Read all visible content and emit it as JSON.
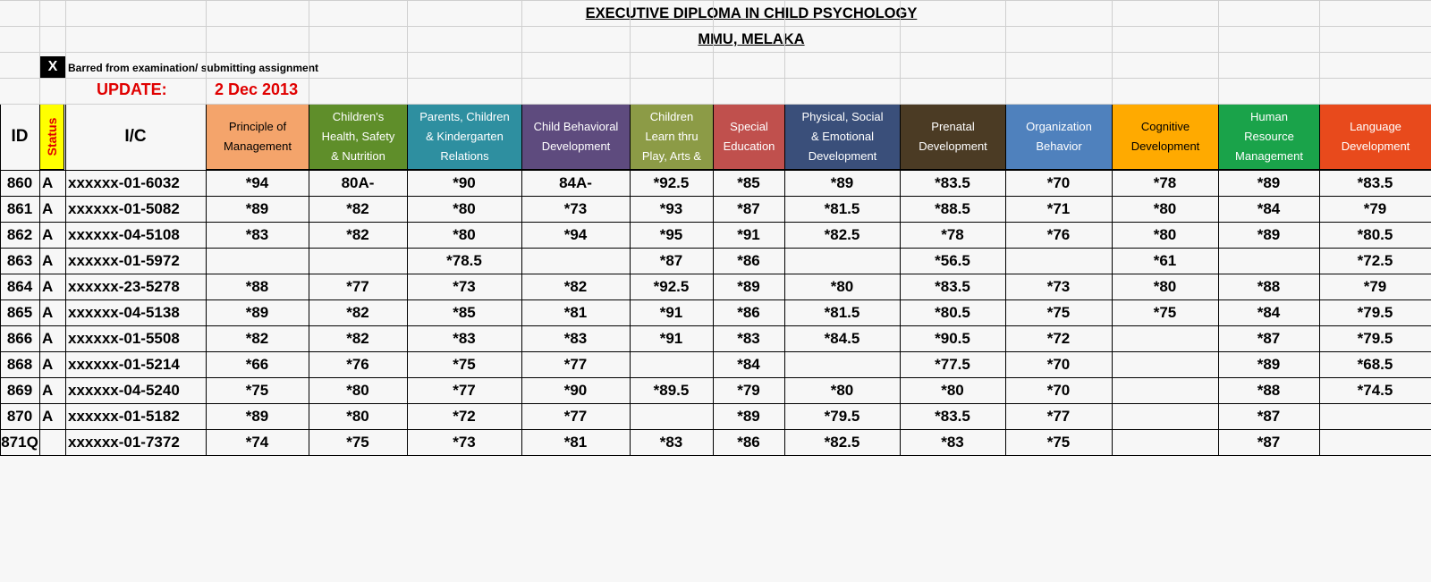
{
  "title": "EXECUTIVE DIPLOMA IN CHILD PSYCHOLOGY",
  "subtitle": "MMU, MELAKA",
  "legend": {
    "mark": "X",
    "text": "Barred from examination/ submitting assignment"
  },
  "update": {
    "label": "UPDATE:",
    "date": "2 Dec 2013"
  },
  "headers": {
    "id": "ID",
    "status": "Status",
    "ic": "I/C",
    "subjects": [
      {
        "lines": [
          "Principle of",
          "Management"
        ],
        "color": "#f4a46b"
      },
      {
        "lines": [
          "Children's",
          "Health, Safety",
          "& Nutrition"
        ],
        "color": "#5f8e2a"
      },
      {
        "lines": [
          "Parents, Children",
          "& Kindergarten",
          "Relations"
        ],
        "color": "#2e8fa0"
      },
      {
        "lines": [
          "Child Behavioral",
          "Development"
        ],
        "color": "#5e4b7e"
      },
      {
        "lines": [
          "Children",
          "Learn thru",
          "Play, Arts &"
        ],
        "color": "#8c9b46"
      },
      {
        "lines": [
          "Special",
          "Education"
        ],
        "color": "#c0504d"
      },
      {
        "lines": [
          "Physical, Social",
          "& Emotional",
          "Development"
        ],
        "color": "#3a4f7a"
      },
      {
        "lines": [
          "Prenatal",
          "Development"
        ],
        "color": "#4b3b24"
      },
      {
        "lines": [
          "Organization",
          "Behavior"
        ],
        "color": "#4f81bd"
      },
      {
        "lines": [
          "Cognitive",
          "Development"
        ],
        "color": "#ffaa00"
      },
      {
        "lines": [
          "Human",
          "Resource",
          "Management"
        ],
        "color": "#1aa34a"
      },
      {
        "lines": [
          "Language",
          "Development"
        ],
        "color": "#e84a1c"
      }
    ]
  },
  "rows": [
    {
      "id": "860",
      "status": "A",
      "ic": "xxxxxx-01-6032",
      "marks": [
        "*94",
        "80A-",
        "*90",
        "84A-",
        "*92.5",
        "*85",
        "*89",
        "*83.5",
        "*70",
        "*78",
        "*89",
        "*83.5"
      ]
    },
    {
      "id": "861",
      "status": "A",
      "ic": "xxxxxx-01-5082",
      "marks": [
        "*89",
        "*82",
        "*80",
        "*73",
        "*93",
        "*87",
        "*81.5",
        "*88.5",
        "*71",
        "*80",
        "*84",
        "*79"
      ]
    },
    {
      "id": "862",
      "status": "A",
      "ic": "xxxxxx-04-5108",
      "marks": [
        "*83",
        "*82",
        "*80",
        "*94",
        "*95",
        "*91",
        "*82.5",
        "*78",
        "*76",
        "*80",
        "*89",
        "*80.5"
      ]
    },
    {
      "id": "863",
      "status": "A",
      "ic": "xxxxxx-01-5972",
      "marks": [
        "",
        "",
        "*78.5",
        "",
        "*87",
        "*86",
        "",
        "*56.5",
        "",
        "*61",
        "",
        "*72.5"
      ]
    },
    {
      "id": "864",
      "status": "A",
      "ic": "xxxxxx-23-5278",
      "marks": [
        "*88",
        "*77",
        "*73",
        "*82",
        "*92.5",
        "*89",
        "*80",
        "*83.5",
        "*73",
        "*80",
        "*88",
        "*79"
      ]
    },
    {
      "id": "865",
      "status": "A",
      "ic": "xxxxxx-04-5138",
      "marks": [
        "*89",
        "*82",
        "*85",
        "*81",
        "*91",
        "*86",
        "*81.5",
        "*80.5",
        "*75",
        "*75",
        "*84",
        "*79.5"
      ]
    },
    {
      "id": "866",
      "status": "A",
      "ic": "xxxxxx-01-5508",
      "marks": [
        "*82",
        "*82",
        "*83",
        "*83",
        "*91",
        "*83",
        "*84.5",
        "*90.5",
        "*72",
        "",
        "*87",
        "*79.5"
      ]
    },
    {
      "id": "868",
      "status": "A",
      "ic": "xxxxxx-01-5214",
      "marks": [
        "*66",
        "*76",
        "*75",
        "*77",
        "",
        "*84",
        "",
        "*77.5",
        "*70",
        "",
        "*89",
        "*68.5"
      ]
    },
    {
      "id": "869",
      "status": "A",
      "ic": "xxxxxx-04-5240",
      "marks": [
        "*75",
        "*80",
        "*77",
        "*90",
        "*89.5",
        "*79",
        "*80",
        "*80",
        "*70",
        "",
        "*88",
        "*74.5"
      ]
    },
    {
      "id": "870",
      "status": "A",
      "ic": "xxxxxx-01-5182",
      "marks": [
        "*89",
        "*80",
        "*72",
        "*77",
        "",
        "*89",
        "*79.5",
        "*83.5",
        "*77",
        "",
        "*87",
        ""
      ]
    },
    {
      "id": "871Q",
      "status": "",
      "ic": "xxxxxx-01-7372",
      "marks": [
        "*74",
        "*75",
        "*73",
        "*81",
        "*83",
        "*86",
        "*82.5",
        "*83",
        "*75",
        "",
        "*87",
        ""
      ]
    }
  ]
}
